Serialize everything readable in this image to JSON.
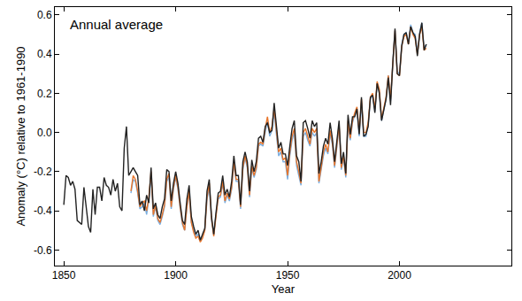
{
  "chart_data": {
    "type": "line",
    "title": "Annual average",
    "x_label": "Year",
    "y_label": "Anomaly (°C) relative to 1961-1990",
    "xlim": [
      1846,
      2050
    ],
    "xticks": [
      1850,
      1900,
      1950,
      2000
    ],
    "ylim": [
      -0.68,
      0.64
    ],
    "yticks": [
      -0.6,
      -0.4,
      -0.2,
      {
        "value": 0,
        "label": "0.0"
      },
      0.2,
      0.4,
      0.6
    ],
    "grid": false,
    "x": [
      1850,
      1851,
      1852,
      1853,
      1854,
      1855,
      1856,
      1857,
      1858,
      1859,
      1860,
      1861,
      1862,
      1863,
      1864,
      1865,
      1866,
      1867,
      1868,
      1869,
      1870,
      1871,
      1872,
      1873,
      1874,
      1875,
      1876,
      1877,
      1878,
      1879,
      1880,
      1881,
      1882,
      1883,
      1884,
      1885,
      1886,
      1887,
      1888,
      1889,
      1890,
      1891,
      1892,
      1893,
      1894,
      1895,
      1896,
      1897,
      1898,
      1899,
      1900,
      1901,
      1902,
      1903,
      1904,
      1905,
      1906,
      1907,
      1908,
      1909,
      1910,
      1911,
      1912,
      1913,
      1914,
      1915,
      1916,
      1917,
      1918,
      1919,
      1920,
      1921,
      1922,
      1923,
      1924,
      1925,
      1926,
      1927,
      1928,
      1929,
      1930,
      1931,
      1932,
      1933,
      1934,
      1935,
      1936,
      1937,
      1938,
      1939,
      1940,
      1941,
      1942,
      1943,
      1944,
      1945,
      1946,
      1947,
      1948,
      1949,
      1950,
      1951,
      1952,
      1953,
      1954,
      1955,
      1956,
      1957,
      1958,
      1959,
      1960,
      1961,
      1962,
      1963,
      1964,
      1965,
      1966,
      1967,
      1968,
      1969,
      1970,
      1971,
      1972,
      1973,
      1974,
      1975,
      1976,
      1977,
      1978,
      1979,
      1980,
      1981,
      1982,
      1983,
      1984,
      1985,
      1986,
      1987,
      1988,
      1989,
      1990,
      1991,
      1992,
      1993,
      1994,
      1995,
      1996,
      1997,
      1998,
      1999,
      2000,
      2001,
      2002,
      2003,
      2004,
      2005,
      2006,
      2007,
      2008,
      2009,
      2010,
      2011,
      2012
    ],
    "series": [
      {
        "color": "#7aaee0",
        "values": [
          null,
          null,
          null,
          null,
          null,
          null,
          null,
          null,
          null,
          null,
          null,
          null,
          null,
          null,
          null,
          null,
          null,
          null,
          null,
          null,
          null,
          null,
          null,
          null,
          null,
          null,
          null,
          null,
          null,
          null,
          -0.31,
          -0.24,
          -0.25,
          -0.31,
          -0.39,
          -0.38,
          -0.36,
          -0.42,
          -0.34,
          -0.22,
          -0.43,
          -0.38,
          -0.45,
          -0.47,
          -0.43,
          -0.38,
          -0.25,
          -0.23,
          -0.39,
          -0.29,
          -0.23,
          -0.29,
          -0.39,
          -0.47,
          -0.5,
          -0.38,
          -0.31,
          -0.46,
          -0.5,
          -0.53,
          -0.52,
          -0.55,
          -0.53,
          -0.5,
          -0.34,
          -0.28,
          -0.45,
          -0.52,
          -0.42,
          -0.34,
          -0.33,
          -0.26,
          -0.36,
          -0.32,
          -0.35,
          -0.29,
          -0.16,
          -0.25,
          -0.25,
          -0.39,
          -0.19,
          -0.13,
          -0.18,
          -0.33,
          -0.18,
          -0.23,
          -0.19,
          -0.07,
          -0.06,
          -0.07,
          0.0,
          0.06,
          -0.02,
          0.01,
          0.1,
          0.0,
          -0.12,
          -0.1,
          -0.15,
          -0.15,
          -0.24,
          -0.12,
          -0.04,
          0.0,
          -0.17,
          -0.22,
          -0.27,
          -0.02,
          0.0,
          -0.04,
          -0.07,
          0.0,
          -0.02,
          0.0,
          -0.26,
          -0.19,
          -0.12,
          -0.08,
          -0.11,
          -0.01,
          -0.06,
          -0.18,
          -0.07,
          0.03,
          -0.19,
          -0.13,
          -0.23,
          0.04,
          -0.04,
          0.05,
          0.09,
          0.11,
          -0.02,
          0.15,
          -0.02,
          -0.02,
          0.04,
          0.17,
          0.19,
          0.11,
          0.25,
          0.21,
          0.06,
          0.11,
          0.17,
          0.29,
          0.16,
          0.36,
          0.52,
          0.31,
          0.3,
          0.45,
          0.5,
          0.51,
          0.46,
          0.55,
          0.51,
          0.5,
          0.41,
          0.51,
          0.56,
          0.43,
          0.45
        ]
      },
      {
        "color": "#e8762c",
        "values": [
          null,
          null,
          null,
          null,
          null,
          null,
          null,
          null,
          null,
          null,
          null,
          null,
          null,
          null,
          null,
          null,
          null,
          null,
          null,
          null,
          null,
          null,
          null,
          null,
          null,
          null,
          null,
          null,
          null,
          null,
          -0.3,
          -0.22,
          -0.24,
          -0.3,
          -0.38,
          -0.36,
          -0.35,
          -0.4,
          -0.33,
          -0.2,
          -0.42,
          -0.37,
          -0.44,
          -0.46,
          -0.42,
          -0.37,
          -0.24,
          -0.21,
          -0.38,
          -0.28,
          -0.22,
          -0.28,
          -0.38,
          -0.46,
          -0.5,
          -0.38,
          -0.3,
          -0.46,
          -0.51,
          -0.54,
          -0.53,
          -0.56,
          -0.54,
          -0.5,
          -0.33,
          -0.26,
          -0.44,
          -0.53,
          -0.43,
          -0.33,
          -0.32,
          -0.25,
          -0.35,
          -0.31,
          -0.34,
          -0.28,
          -0.15,
          -0.24,
          -0.24,
          -0.38,
          -0.18,
          -0.12,
          -0.17,
          -0.32,
          -0.17,
          -0.22,
          -0.18,
          -0.06,
          -0.05,
          -0.06,
          0.02,
          0.08,
          0.0,
          0.03,
          0.12,
          0.02,
          -0.1,
          -0.08,
          -0.14,
          -0.13,
          -0.22,
          -0.1,
          -0.02,
          0.02,
          -0.15,
          -0.2,
          -0.26,
          0.0,
          0.02,
          -0.02,
          -0.06,
          0.02,
          0.0,
          0.02,
          -0.25,
          -0.18,
          -0.1,
          -0.06,
          -0.1,
          0.01,
          -0.05,
          -0.17,
          -0.06,
          0.04,
          -0.18,
          -0.12,
          -0.22,
          0.06,
          -0.03,
          0.06,
          0.1,
          0.13,
          0.0,
          0.17,
          0.0,
          0.0,
          0.05,
          0.18,
          0.2,
          0.12,
          0.26,
          0.22,
          0.07,
          0.12,
          0.18,
          0.29,
          0.17,
          0.35,
          0.52,
          0.3,
          0.29,
          0.44,
          0.49,
          0.5,
          0.45,
          0.54,
          0.5,
          0.48,
          0.4,
          0.5,
          0.54,
          0.42,
          0.43
        ]
      },
      {
        "color": "#222222",
        "values": [
          -0.37,
          -0.22,
          -0.23,
          -0.27,
          -0.25,
          -0.29,
          -0.45,
          -0.46,
          -0.47,
          -0.28,
          -0.38,
          -0.48,
          -0.51,
          -0.29,
          -0.42,
          -0.28,
          -0.28,
          -0.35,
          -0.23,
          -0.27,
          -0.28,
          -0.32,
          -0.24,
          -0.3,
          -0.26,
          -0.38,
          -0.4,
          -0.08,
          0.03,
          -0.22,
          -0.2,
          -0.18,
          -0.2,
          -0.22,
          -0.37,
          -0.35,
          -0.4,
          -0.32,
          -0.36,
          -0.18,
          -0.39,
          -0.36,
          -0.42,
          -0.44,
          -0.38,
          -0.34,
          -0.19,
          -0.2,
          -0.35,
          -0.26,
          -0.2,
          -0.26,
          -0.36,
          -0.45,
          -0.47,
          -0.34,
          -0.27,
          -0.43,
          -0.48,
          -0.52,
          -0.5,
          -0.55,
          -0.52,
          -0.49,
          -0.3,
          -0.24,
          -0.43,
          -0.52,
          -0.41,
          -0.31,
          -0.3,
          -0.22,
          -0.32,
          -0.29,
          -0.33,
          -0.25,
          -0.12,
          -0.22,
          -0.22,
          -0.37,
          -0.15,
          -0.1,
          -0.15,
          -0.3,
          -0.14,
          -0.2,
          -0.15,
          -0.03,
          -0.02,
          -0.05,
          0.03,
          0.05,
          0.0,
          0.01,
          0.15,
          0.03,
          -0.08,
          -0.05,
          -0.11,
          -0.11,
          -0.17,
          -0.07,
          0.02,
          0.06,
          -0.12,
          -0.15,
          -0.25,
          0.05,
          0.06,
          0.02,
          -0.03,
          0.06,
          0.03,
          0.05,
          -0.21,
          -0.15,
          -0.07,
          -0.03,
          -0.06,
          0.05,
          -0.03,
          -0.15,
          -0.03,
          0.06,
          -0.16,
          -0.1,
          -0.21,
          0.09,
          -0.01,
          0.08,
          0.08,
          0.12,
          -0.01,
          0.18,
          -0.02,
          -0.01,
          0.03,
          0.18,
          0.19,
          0.1,
          0.25,
          0.2,
          0.06,
          0.11,
          0.17,
          0.28,
          0.14,
          0.35,
          0.53,
          0.3,
          0.29,
          0.44,
          0.5,
          0.51,
          0.45,
          0.54,
          0.51,
          0.49,
          0.39,
          0.5,
          0.56,
          0.42,
          0.45
        ]
      }
    ]
  }
}
